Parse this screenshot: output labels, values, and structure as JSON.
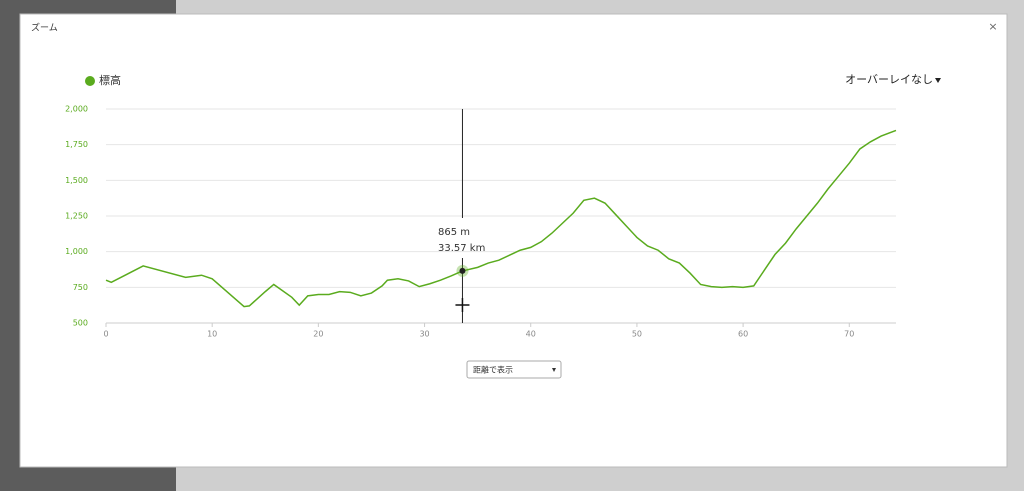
{
  "modal": {
    "title": "ズーム",
    "close": "×",
    "overlay": "オーバーレイなし",
    "axis_mode": "距離で表示"
  },
  "chart_data": {
    "type": "line",
    "series": [
      {
        "name": "標高",
        "color": "#5aab1e",
        "x": [
          0,
          0.5,
          3.5,
          7.5,
          9,
          10,
          13,
          13.5,
          15,
          15.8,
          17.5,
          18.2,
          19,
          20,
          21,
          22,
          23,
          24,
          25,
          26,
          26.5,
          27.5,
          28.5,
          29.5,
          30.5,
          31.5,
          32.5,
          33.57,
          35,
          36,
          37,
          38,
          39,
          40,
          41,
          42,
          43,
          44,
          45,
          46,
          47,
          48,
          49,
          50,
          51,
          52,
          53,
          54,
          55,
          56,
          57,
          58,
          59,
          60,
          61,
          62,
          63,
          64,
          65,
          66,
          67,
          68,
          69,
          70,
          71,
          72,
          73,
          74.4
        ],
        "values": [
          800,
          785,
          900,
          820,
          835,
          810,
          615,
          620,
          720,
          770,
          680,
          625,
          690,
          700,
          700,
          720,
          715,
          690,
          710,
          760,
          800,
          810,
          795,
          755,
          775,
          800,
          830,
          865,
          890,
          920,
          940,
          975,
          1010,
          1030,
          1070,
          1130,
          1200,
          1270,
          1360,
          1375,
          1340,
          1260,
          1180,
          1100,
          1040,
          1010,
          950,
          920,
          850,
          770,
          755,
          750,
          755,
          750,
          760,
          870,
          980,
          1060,
          1160,
          1250,
          1340,
          1440,
          1530,
          1620,
          1720,
          1770,
          1810,
          1850
        ]
      }
    ],
    "xlim": [
      0,
      74.4
    ],
    "xticks": [
      0,
      10,
      20,
      30,
      40,
      50,
      60,
      70
    ],
    "ylim": [
      500,
      2000
    ],
    "yticks": [
      500,
      750,
      {
        "value": 1000,
        "label": "1,000"
      },
      {
        "value": 1250,
        "label": "1,250"
      },
      {
        "value": 1500,
        "label": "1,500"
      },
      {
        "value": 1750,
        "label": "1,750"
      },
      {
        "value": 2000,
        "label": "2,000"
      }
    ],
    "grid": true,
    "tooltip": {
      "x": 33.57,
      "y": 865,
      "lines": [
        "865 m",
        "33.57 km"
      ]
    }
  }
}
